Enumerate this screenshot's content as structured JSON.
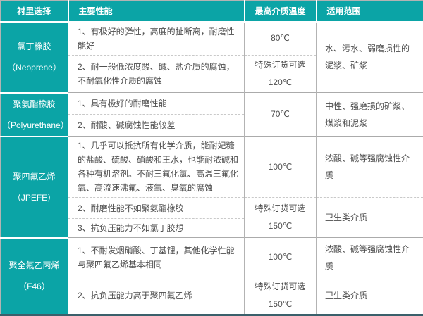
{
  "table": {
    "title": "flowmeter-lining-selection-table",
    "headers": {
      "lining": "衬里选择",
      "performance": "主要性能",
      "max_temp": "最高介质温度",
      "scope": "适用范围"
    },
    "colors": {
      "teal": "#0ba4a6",
      "grid_border": "#b3b3b3",
      "dashed_border": "#c9c9c9",
      "bottom_bar": "#3a606b",
      "body_text": "#4d4d4d"
    },
    "rows": [
      {
        "lining": "氯丁橡胶\n（Neoprene）",
        "scope": "水、污水、弱磨损性的泥浆、矿浆",
        "sub": [
          {
            "perf": "1、有极好的弹性，高度的扯断离，耐磨性能好",
            "temp": "80℃"
          },
          {
            "perf": "2、耐一般低浓度酸、碱、盐介质的腐蚀，不耐氧化性介质的腐蚀",
            "temp": "特殊订货可选\n120℃"
          }
        ]
      },
      {
        "lining": "聚氨酯橡胶\n（Polyurethane）",
        "temp": "70℃",
        "scope": "中性、强磨损的矿浆、煤浆和泥浆",
        "sub": [
          {
            "perf": "1、具有极好的耐磨性能"
          },
          {
            "perf": "2、耐酸、碱腐蚀性能较差"
          }
        ]
      },
      {
        "lining": "聚四氟乙烯\n（JPEFE）",
        "sub": [
          {
            "perf": "1、几乎可以抵抗所有化学介质，能耐妃糖的盐酸、硫酸、硝酸和王水，也能耐浓碱和各种有机溶剂。不耐三氟化氯、高温三氟化氧、高流速沸氟、液氧、臭氧的腐蚀",
            "temp": "100℃",
            "scope": "浓酸、碱等强腐蚀性介质"
          },
          {
            "perf": "2、耐磨性能不如聚氨酯橡胶",
            "temp": "特殊订货可选\n150℃",
            "scope": "卫生类介质"
          },
          {
            "perf": "3、抗负压能力不如氯丁胶想"
          }
        ]
      },
      {
        "lining": "聚全氟乙丙烯\n（F46）",
        "sub": [
          {
            "perf": "1、不耐发烟硝酸、丁基锂，其他化学性能与聚四氟乙烯基本相同",
            "temp": "100℃",
            "scope": "浓酸、碱等强腐蚀性介质"
          },
          {
            "perf": "2、抗负压能力高于聚四氟乙烯",
            "temp": "特殊订货可选\n150℃",
            "scope": "卫生类介质"
          }
        ]
      }
    ]
  }
}
